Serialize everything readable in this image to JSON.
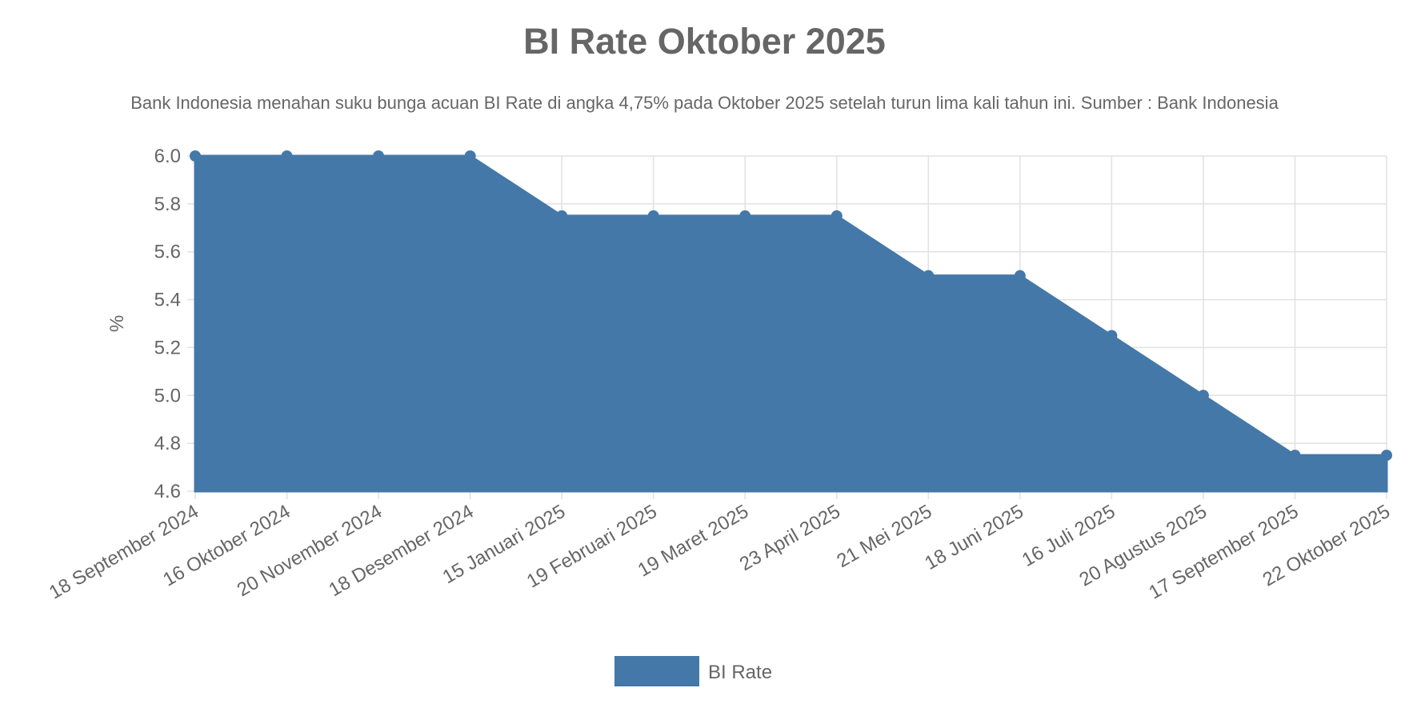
{
  "chart_data": {
    "type": "area",
    "title": "BI Rate Oktober 2025",
    "subtitle": "Bank Indonesia menahan suku bunga acuan BI Rate di angka 4,75% pada Oktober 2025 setelah turun lima kali tahun ini. Sumber : Bank Indonesia",
    "xlabel": "",
    "ylabel": "%",
    "ylim": [
      4.6,
      6.0
    ],
    "yticks": [
      "6.0",
      "5.8",
      "5.6",
      "5.4",
      "5.2",
      "5.0",
      "4.8",
      "4.6"
    ],
    "grid": true,
    "legend_position": "bottom",
    "color": "#4478a8",
    "categories": [
      "18 September 2024",
      "16 Oktober 2024",
      "20 November 2024",
      "18 Desember 2024",
      "15 Januari 2025",
      "19 Februari 2025",
      "19 Maret 2025",
      "23 April 2025",
      "21 Mei 2025",
      "18 Juni 2025",
      "16 Juli 2025",
      "20 Agustus 2025",
      "17 September 2025",
      "22 Oktober 2025"
    ],
    "series": [
      {
        "name": "BI Rate",
        "values": [
          6.0,
          6.0,
          6.0,
          6.0,
          5.75,
          5.75,
          5.75,
          5.75,
          5.5,
          5.5,
          5.25,
          5.0,
          4.75,
          4.75
        ]
      }
    ]
  }
}
